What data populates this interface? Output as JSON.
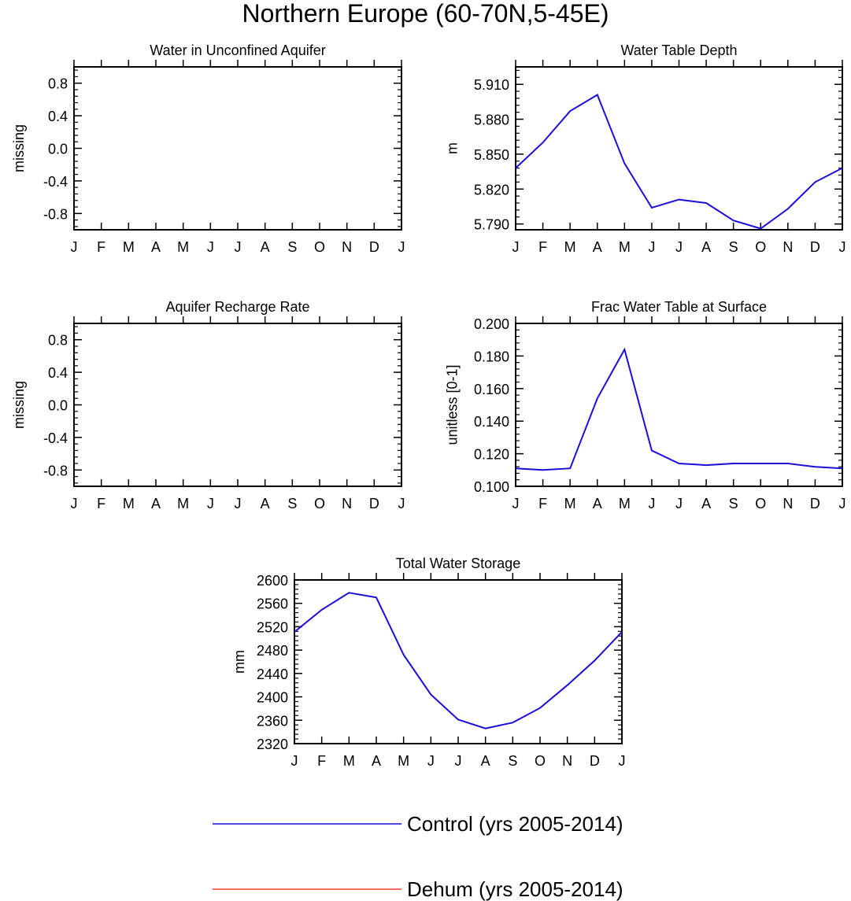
{
  "figure": {
    "title": "Northern Europe (60-70N,5-45E)"
  },
  "legend": [
    {
      "label": "Control (yrs 2005-2014)",
      "color": "#1a0fd8"
    },
    {
      "label": "Dehum (yrs 2005-2014)",
      "color": "#f0432f"
    }
  ],
  "chart_data": [
    {
      "type": "line",
      "title": "Water in Unconfined Aquifer",
      "xlabel": "",
      "ylabel": "missing",
      "categories": [
        "J",
        "F",
        "M",
        "A",
        "M",
        "J",
        "J",
        "A",
        "S",
        "O",
        "N",
        "D",
        "J"
      ],
      "ylim": [
        -1,
        1
      ],
      "yticks": [
        -0.8,
        -0.4,
        0.0,
        0.4,
        0.8
      ],
      "ytick_labels": [
        "-0.8",
        "-0.4",
        "0.0",
        "0.4",
        "0.8"
      ],
      "series": []
    },
    {
      "type": "line",
      "title": "Water Table Depth",
      "xlabel": "",
      "ylabel": "m",
      "categories": [
        "J",
        "F",
        "M",
        "A",
        "M",
        "J",
        "J",
        "A",
        "S",
        "O",
        "N",
        "D",
        "J"
      ],
      "ylim": [
        5.785,
        5.925
      ],
      "yticks": [
        5.79,
        5.82,
        5.85,
        5.88,
        5.91
      ],
      "ytick_labels": [
        "5.790",
        "5.820",
        "5.850",
        "5.880",
        "5.910"
      ],
      "series": [
        {
          "name": "Control (yrs 2005-2014)",
          "color": "#1a0fd8",
          "values": [
            5.838,
            5.86,
            5.887,
            5.901,
            5.842,
            5.804,
            5.811,
            5.808,
            5.793,
            5.786,
            5.803,
            5.826,
            5.838
          ]
        }
      ]
    },
    {
      "type": "line",
      "title": "Aquifer Recharge Rate",
      "xlabel": "",
      "ylabel": "missing",
      "categories": [
        "J",
        "F",
        "M",
        "A",
        "M",
        "J",
        "J",
        "A",
        "S",
        "O",
        "N",
        "D",
        "J"
      ],
      "ylim": [
        -1,
        1
      ],
      "yticks": [
        -0.8,
        -0.4,
        0.0,
        0.4,
        0.8
      ],
      "ytick_labels": [
        "-0.8",
        "-0.4",
        "0.0",
        "0.4",
        "0.8"
      ],
      "series": []
    },
    {
      "type": "line",
      "title": "Frac Water Table at Surface",
      "xlabel": "",
      "ylabel": "unitless [0-1]",
      "categories": [
        "J",
        "F",
        "M",
        "A",
        "M",
        "J",
        "J",
        "A",
        "S",
        "O",
        "N",
        "D",
        "J"
      ],
      "ylim": [
        0.1,
        0.2
      ],
      "yticks": [
        0.1,
        0.12,
        0.14,
        0.16,
        0.18,
        0.2
      ],
      "ytick_labels": [
        "0.100",
        "0.120",
        "0.140",
        "0.160",
        "0.180",
        "0.200"
      ],
      "series": [
        {
          "name": "Control (yrs 2005-2014)",
          "color": "#1a0fd8",
          "values": [
            0.111,
            0.11,
            0.111,
            0.154,
            0.184,
            0.122,
            0.114,
            0.113,
            0.114,
            0.114,
            0.114,
            0.112,
            0.111
          ]
        }
      ]
    },
    {
      "type": "line",
      "title": "Total Water Storage",
      "xlabel": "",
      "ylabel": "mm",
      "categories": [
        "J",
        "F",
        "M",
        "A",
        "M",
        "J",
        "J",
        "A",
        "S",
        "O",
        "N",
        "D",
        "J"
      ],
      "ylim": [
        2320,
        2600
      ],
      "yticks": [
        2320,
        2360,
        2400,
        2440,
        2480,
        2520,
        2560,
        2600
      ],
      "ytick_labels": [
        "2320",
        "2360",
        "2400",
        "2440",
        "2480",
        "2520",
        "2560",
        "2600"
      ],
      "series": [
        {
          "name": "Control (yrs 2005-2014)",
          "color": "#1a0fd8",
          "values": [
            2511,
            2549,
            2578,
            2570,
            2472,
            2404,
            2361,
            2346,
            2356,
            2381,
            2420,
            2462,
            2511
          ]
        }
      ]
    }
  ]
}
